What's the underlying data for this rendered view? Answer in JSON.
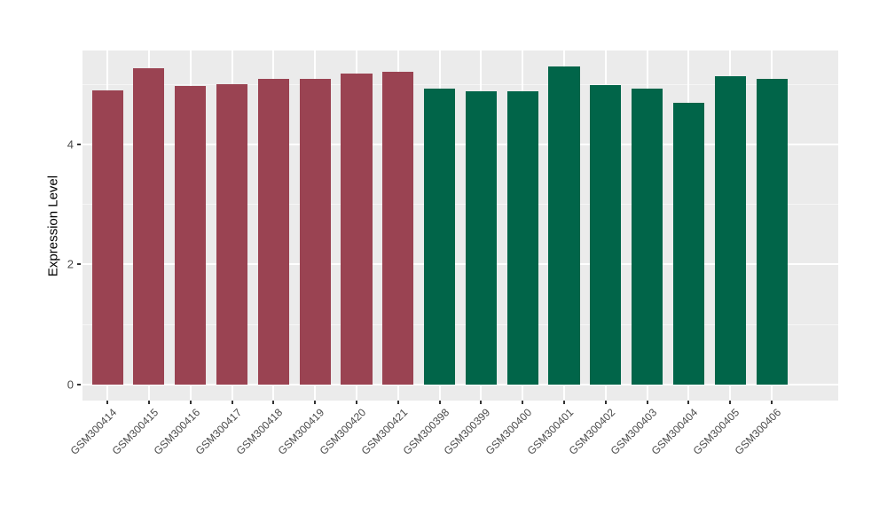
{
  "chart_data": {
    "type": "bar",
    "title": "",
    "xlabel": "",
    "ylabel": "Expression Level",
    "categories": [
      "GSM300414",
      "GSM300415",
      "GSM300416",
      "GSM300417",
      "GSM300418",
      "GSM300419",
      "GSM300420",
      "GSM300421",
      "GSM300398",
      "GSM300399",
      "GSM300400",
      "GSM300401",
      "GSM300402",
      "GSM300403",
      "GSM300404",
      "GSM300405",
      "GSM300406"
    ],
    "values": [
      4.9,
      5.27,
      4.98,
      5.01,
      5.09,
      5.09,
      5.19,
      5.21,
      4.93,
      4.89,
      4.89,
      5.3,
      5.0,
      4.93,
      4.7,
      5.14,
      5.09
    ],
    "groups": [
      0,
      0,
      0,
      0,
      0,
      0,
      0,
      0,
      1,
      1,
      1,
      1,
      1,
      1,
      1,
      1,
      1
    ],
    "palette": [
      "#9A4352",
      "#016549"
    ],
    "y_ticks": [
      0,
      2,
      4
    ],
    "y_minor_ticks": [
      1,
      3,
      5
    ],
    "ylim": [
      -0.27,
      5.57
    ],
    "legend_position": "none",
    "grid": "major-and-minor",
    "panel_bg": "#EBEBEB",
    "grid_major_color": "#FFFFFF",
    "grid_minor_color": "#F6F6F6",
    "axis_text_color": "#4a4a4a",
    "axis_title_color": "#000000"
  }
}
